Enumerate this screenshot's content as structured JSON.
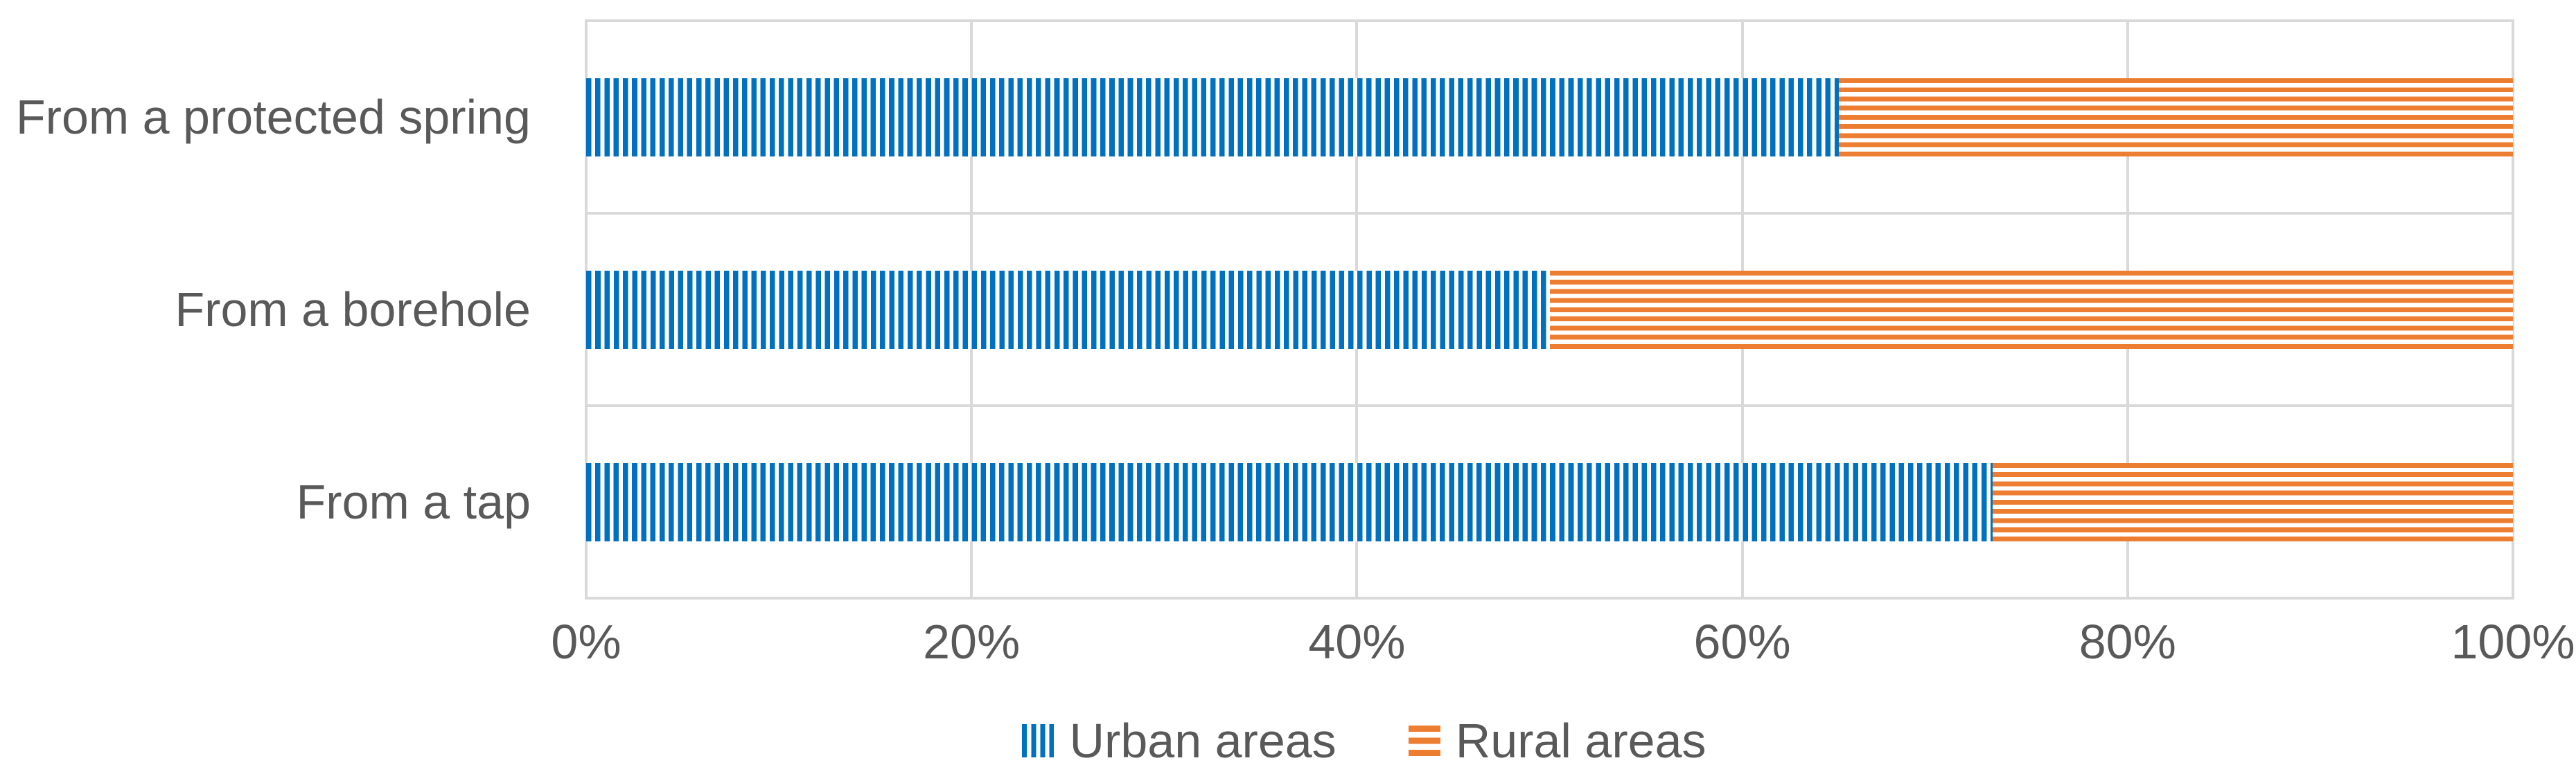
{
  "chart_data": {
    "type": "bar",
    "orientation": "horizontal",
    "stacked": true,
    "stacked_total": 100,
    "title": "",
    "xlabel": "",
    "ylabel": "",
    "categories": [
      "From a protected spring",
      "From a borehole",
      "From a tap"
    ],
    "series": [
      {
        "name": "Urban areas",
        "color": "#0070C0",
        "pattern": "vertical-stripes",
        "values": [
          65,
          50,
          73
        ]
      },
      {
        "name": "Rural areas",
        "color": "#ED7D31",
        "pattern": "horizontal-stripes",
        "values": [
          35,
          50,
          27
        ]
      }
    ],
    "x_ticks": [
      "0%",
      "20%",
      "40%",
      "60%",
      "80%",
      "100%"
    ],
    "xlim": [
      0,
      100
    ],
    "grid": true,
    "gridline_color": "#D9D9D9",
    "legend_position": "bottom"
  },
  "colors": {
    "urban": "#0070C0",
    "rural": "#ED7D31",
    "grid": "#D9D9D9",
    "text": "#595959",
    "background": "#FFFFFF"
  },
  "legend": {
    "items": [
      {
        "label": "Urban areas",
        "swatch": "blue-vertical-stripes"
      },
      {
        "label": "Rural areas",
        "swatch": "orange-horizontal-stripes"
      }
    ]
  }
}
